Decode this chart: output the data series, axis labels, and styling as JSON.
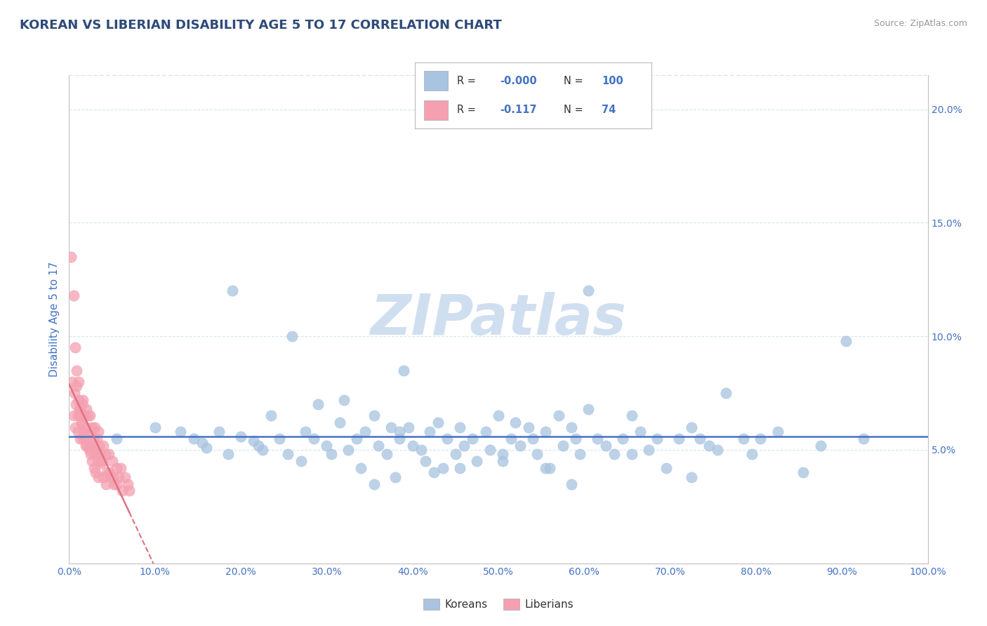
{
  "title": "KOREAN VS LIBERIAN DISABILITY AGE 5 TO 17 CORRELATION CHART",
  "source_text": "Source: ZipAtlas.com",
  "ylabel": "Disability Age 5 to 17",
  "xlim": [
    0.0,
    1.0
  ],
  "ylim": [
    0.0,
    0.215
  ],
  "xticks": [
    0.0,
    0.1,
    0.2,
    0.3,
    0.4,
    0.5,
    0.6,
    0.7,
    0.8,
    0.9,
    1.0
  ],
  "xticklabels": [
    "0.0%",
    "10.0%",
    "20.0%",
    "30.0%",
    "40.0%",
    "50.0%",
    "60.0%",
    "70.0%",
    "80.0%",
    "90.0%",
    "100.0%"
  ],
  "yticks_right": [
    0.05,
    0.1,
    0.15,
    0.2
  ],
  "yticklabels_right": [
    "5.0%",
    "10.0%",
    "15.0%",
    "20.0%"
  ],
  "korean_color": "#a8c4e0",
  "liberian_color": "#f4a0b0",
  "korean_line_color": "#4472c4",
  "liberian_line_color": "#e07080",
  "legend_R_korean": "-0.000",
  "legend_N_korean": "100",
  "legend_R_liberian": "-0.117",
  "legend_N_liberian": "74",
  "watermark": "ZIPatlas",
  "watermark_color": "#d0dff0",
  "title_color": "#2e4a7a",
  "axis_label_color": "#4472c4",
  "tick_label_color": "#4472c4",
  "background_color": "#ffffff",
  "grid_color": "#d8e4f0",
  "korean_x": [
    0.055,
    0.1,
    0.13,
    0.145,
    0.155,
    0.16,
    0.175,
    0.185,
    0.19,
    0.2,
    0.215,
    0.225,
    0.22,
    0.235,
    0.245,
    0.255,
    0.26,
    0.27,
    0.275,
    0.285,
    0.29,
    0.3,
    0.305,
    0.315,
    0.32,
    0.325,
    0.335,
    0.34,
    0.345,
    0.355,
    0.36,
    0.37,
    0.375,
    0.38,
    0.385,
    0.39,
    0.395,
    0.4,
    0.41,
    0.415,
    0.42,
    0.43,
    0.435,
    0.44,
    0.45,
    0.455,
    0.46,
    0.47,
    0.475,
    0.485,
    0.49,
    0.5,
    0.505,
    0.515,
    0.52,
    0.525,
    0.535,
    0.54,
    0.545,
    0.555,
    0.56,
    0.57,
    0.575,
    0.585,
    0.59,
    0.595,
    0.605,
    0.615,
    0.625,
    0.635,
    0.645,
    0.655,
    0.665,
    0.675,
    0.685,
    0.695,
    0.71,
    0.725,
    0.735,
    0.745,
    0.755,
    0.765,
    0.785,
    0.795,
    0.805,
    0.825,
    0.855,
    0.875,
    0.905,
    0.925,
    0.355,
    0.425,
    0.555,
    0.605,
    0.655,
    0.505,
    0.385,
    0.725,
    0.455,
    0.585
  ],
  "korean_y": [
    0.055,
    0.06,
    0.058,
    0.055,
    0.053,
    0.051,
    0.058,
    0.048,
    0.12,
    0.056,
    0.054,
    0.05,
    0.052,
    0.065,
    0.055,
    0.048,
    0.1,
    0.045,
    0.058,
    0.055,
    0.07,
    0.052,
    0.048,
    0.062,
    0.072,
    0.05,
    0.055,
    0.042,
    0.058,
    0.065,
    0.052,
    0.048,
    0.06,
    0.038,
    0.055,
    0.085,
    0.06,
    0.052,
    0.05,
    0.045,
    0.058,
    0.062,
    0.042,
    0.055,
    0.048,
    0.06,
    0.052,
    0.055,
    0.045,
    0.058,
    0.05,
    0.065,
    0.048,
    0.055,
    0.062,
    0.052,
    0.06,
    0.055,
    0.048,
    0.058,
    0.042,
    0.065,
    0.052,
    0.06,
    0.055,
    0.048,
    0.12,
    0.055,
    0.052,
    0.048,
    0.055,
    0.065,
    0.058,
    0.05,
    0.055,
    0.042,
    0.055,
    0.06,
    0.055,
    0.052,
    0.05,
    0.075,
    0.055,
    0.048,
    0.055,
    0.058,
    0.04,
    0.052,
    0.098,
    0.055,
    0.035,
    0.04,
    0.042,
    0.068,
    0.048,
    0.045,
    0.058,
    0.038,
    0.042,
    0.035
  ],
  "liberian_x": [
    0.002,
    0.004,
    0.005,
    0.006,
    0.007,
    0.008,
    0.009,
    0.01,
    0.01,
    0.011,
    0.012,
    0.013,
    0.013,
    0.014,
    0.015,
    0.016,
    0.016,
    0.017,
    0.018,
    0.019,
    0.02,
    0.02,
    0.021,
    0.022,
    0.023,
    0.024,
    0.025,
    0.026,
    0.027,
    0.028,
    0.029,
    0.03,
    0.031,
    0.032,
    0.033,
    0.034,
    0.035,
    0.036,
    0.038,
    0.04,
    0.042,
    0.044,
    0.046,
    0.048,
    0.05,
    0.052,
    0.055,
    0.058,
    0.06,
    0.062,
    0.065,
    0.068,
    0.07,
    0.005,
    0.007,
    0.009,
    0.011,
    0.013,
    0.015,
    0.017,
    0.019,
    0.021,
    0.023,
    0.025,
    0.027,
    0.029,
    0.031,
    0.034,
    0.037,
    0.04,
    0.043,
    0.047,
    0.051,
    0.055
  ],
  "liberian_y": [
    0.135,
    0.08,
    0.065,
    0.075,
    0.06,
    0.07,
    0.085,
    0.065,
    0.058,
    0.08,
    0.068,
    0.065,
    0.055,
    0.062,
    0.07,
    0.055,
    0.072,
    0.058,
    0.065,
    0.052,
    0.068,
    0.06,
    0.058,
    0.065,
    0.052,
    0.065,
    0.058,
    0.052,
    0.06,
    0.055,
    0.048,
    0.06,
    0.05,
    0.055,
    0.045,
    0.058,
    0.052,
    0.048,
    0.045,
    0.052,
    0.048,
    0.04,
    0.048,
    0.038,
    0.045,
    0.035,
    0.042,
    0.038,
    0.042,
    0.032,
    0.038,
    0.035,
    0.032,
    0.118,
    0.095,
    0.078,
    0.072,
    0.068,
    0.062,
    0.058,
    0.055,
    0.052,
    0.05,
    0.048,
    0.045,
    0.042,
    0.04,
    0.038,
    0.044,
    0.038,
    0.035,
    0.04,
    0.038,
    0.035
  ]
}
